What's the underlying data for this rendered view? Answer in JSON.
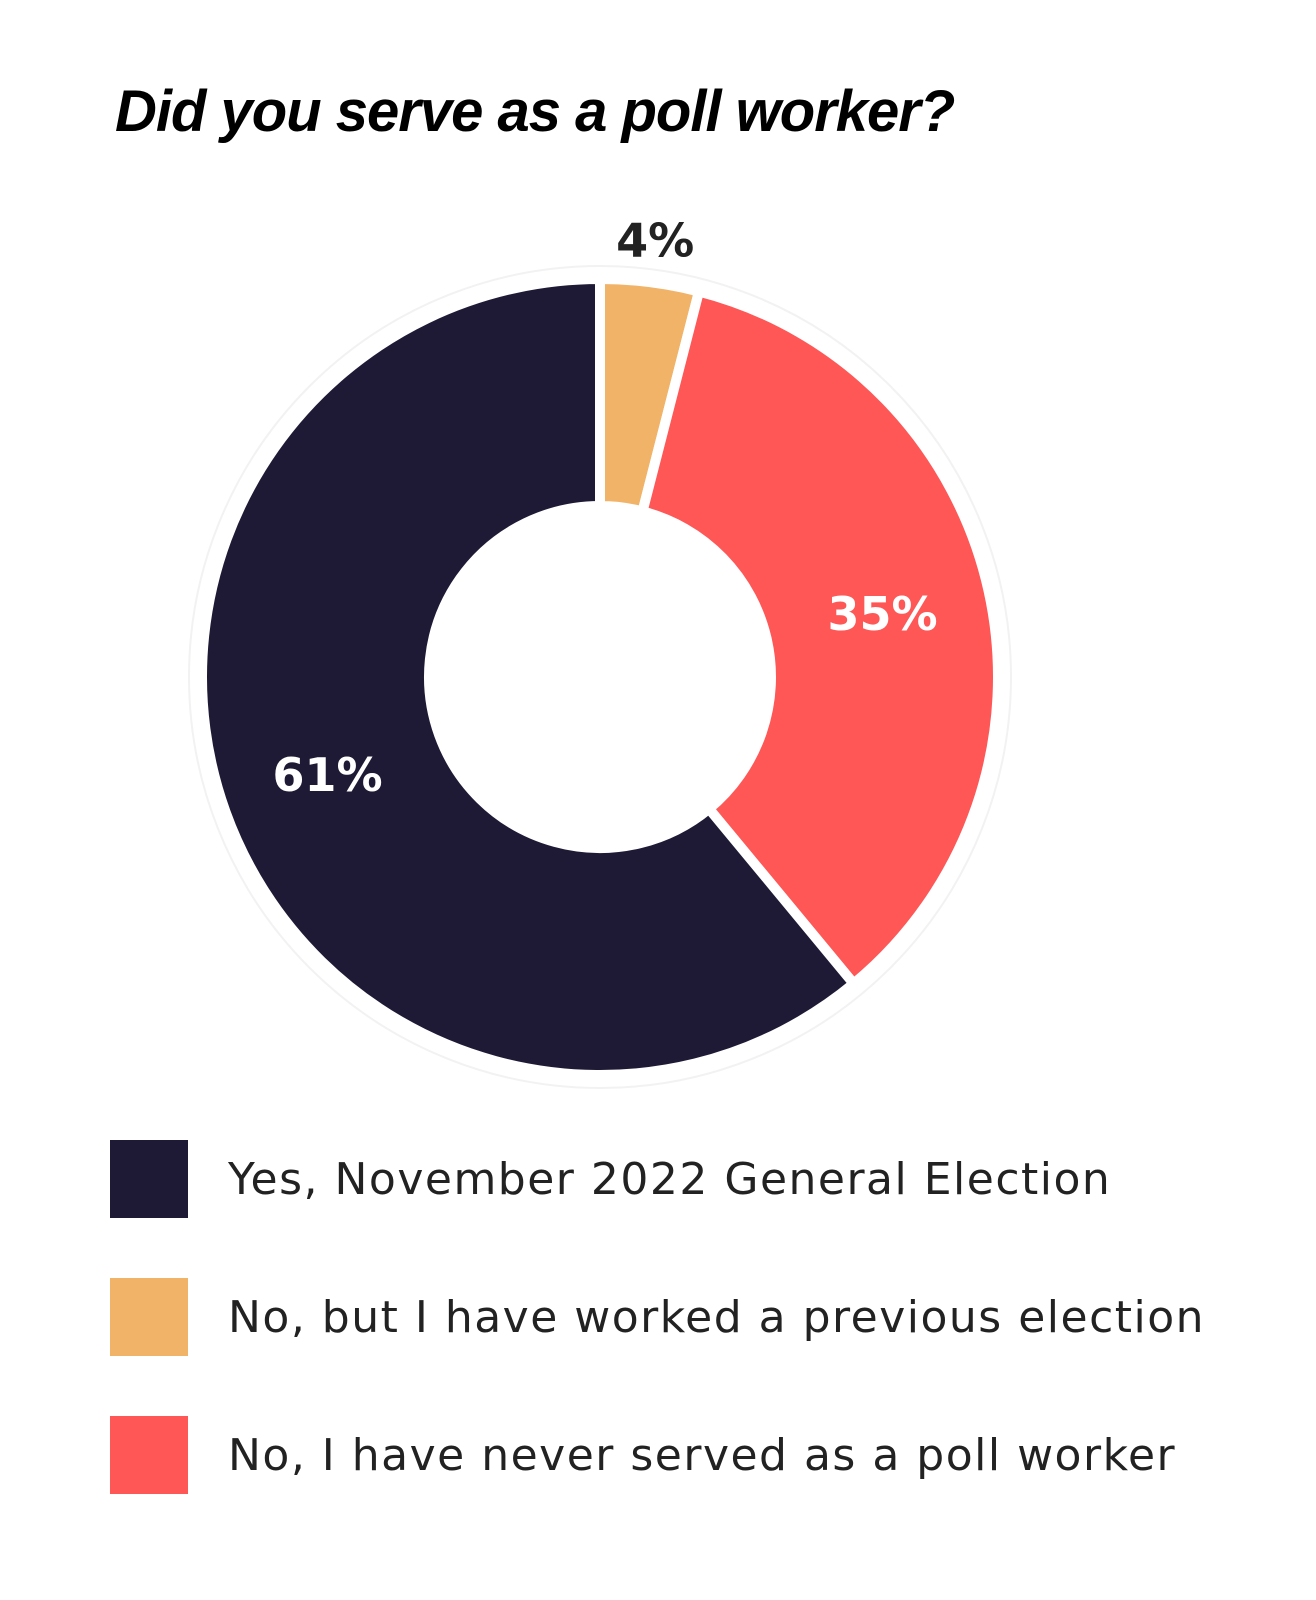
{
  "chart_data": {
    "type": "pie",
    "style": "donut",
    "title": "Did you serve as a poll worker?",
    "slices": [
      {
        "label": "Yes, November 2022 General Election",
        "value": 61,
        "value_label": "61%",
        "color": "#1e1a35",
        "label_color": "#ffffff"
      },
      {
        "label": "No, but I have worked a previous election",
        "value": 4,
        "value_label": "4%",
        "color": "#f1b368",
        "label_color": "#222222"
      },
      {
        "label": "No, I have never served as a poll worker",
        "value": 35,
        "value_label": "35%",
        "color": "#ff5656",
        "label_color": "#ffffff"
      }
    ],
    "slice_order_clockwise_from_top": [
      "No, but I have worked a previous election",
      "No, I have never served as a poll worker",
      "Yes, November 2022 General Election"
    ],
    "legend_position": "bottom",
    "units": "percent"
  }
}
